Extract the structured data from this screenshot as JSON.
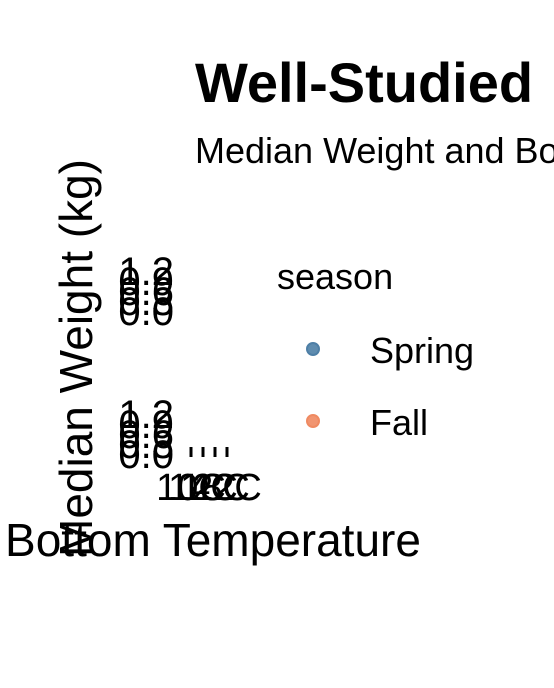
{
  "chart_data": {
    "type": "scatter",
    "title": "Well-Studied",
    "subtitle": "Median Weight and Bo",
    "xlabel": "Bottom Temperature",
    "ylabel": "Median Weight (kg)",
    "facets": 2,
    "y_ticks": [
      "0.0",
      "0.3",
      "0.6",
      "0.9",
      "1.2"
    ],
    "x_ticks": [
      "10C",
      "14C",
      "18C",
      "22C"
    ],
    "legend": {
      "title": "season",
      "position": "right",
      "entries": [
        {
          "label": "Spring",
          "color": "#4e7fa6"
        },
        {
          "label": "Fall",
          "color": "#ef8a62"
        }
      ]
    },
    "series": [
      {
        "name": "Spring",
        "values": []
      },
      {
        "name": "Fall",
        "values": []
      }
    ]
  }
}
